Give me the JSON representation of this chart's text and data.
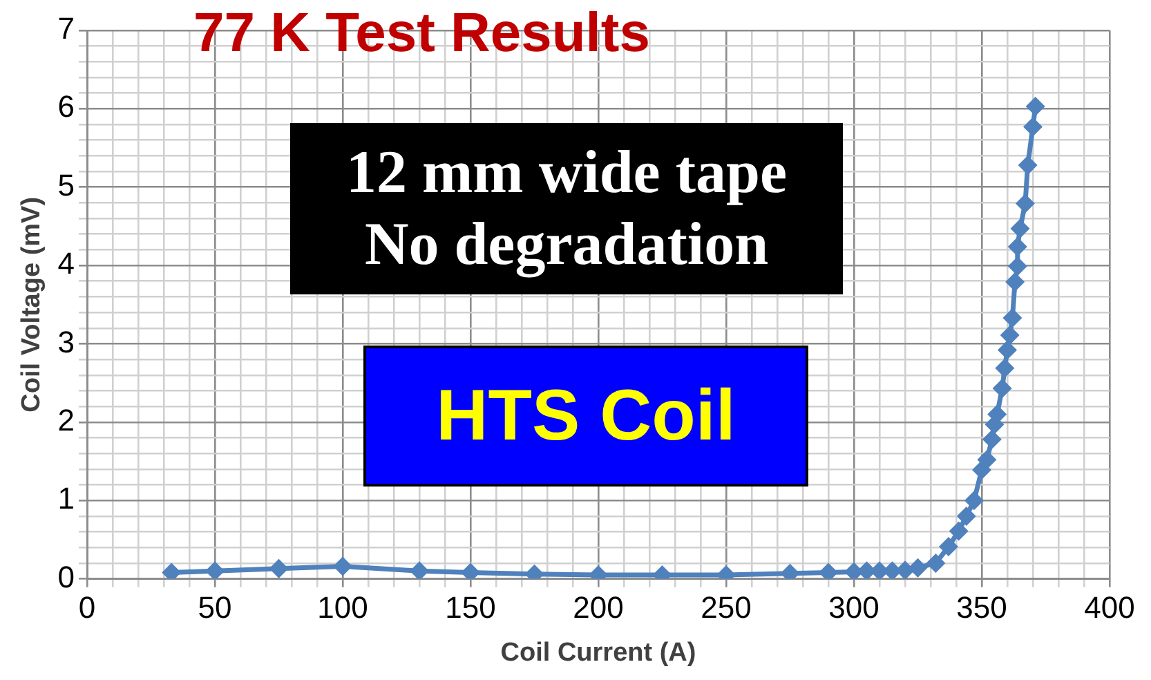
{
  "chart_data": {
    "type": "line",
    "title": "77 K Test Results",
    "xlabel": "Coil Current (A)",
    "ylabel": "Coil Voltage (mV)",
    "annotations": [
      "12 mm wide tape\nNo degradation",
      "HTS Coil"
    ],
    "series": [
      {
        "color": "#4f81bd",
        "x": [
          33,
          50,
          75,
          100,
          130,
          150,
          175,
          200,
          225,
          250,
          275,
          290,
          300,
          305,
          310,
          315,
          320,
          325,
          332,
          337,
          341,
          344,
          347,
          350,
          352,
          354,
          355,
          356,
          358,
          359,
          360,
          361,
          362,
          363,
          364,
          364,
          365,
          367,
          368,
          370,
          371
        ],
        "values": [
          0.08,
          0.1,
          0.13,
          0.16,
          0.1,
          0.08,
          0.06,
          0.05,
          0.05,
          0.05,
          0.07,
          0.08,
          0.09,
          0.1,
          0.1,
          0.1,
          0.11,
          0.14,
          0.2,
          0.41,
          0.61,
          0.8,
          1.0,
          1.39,
          1.52,
          1.78,
          1.97,
          2.1,
          2.43,
          2.69,
          2.92,
          3.11,
          3.33,
          3.79,
          3.99,
          4.24,
          4.47,
          4.79,
          5.28,
          5.77,
          6.03
        ]
      }
    ],
    "xlim": [
      0,
      400
    ],
    "xticks": [
      0,
      {
        "value": 10,
        "label": null
      },
      {
        "value": 20,
        "label": null
      },
      {
        "value": 30,
        "label": null
      },
      {
        "value": 40,
        "label": null
      },
      50,
      {
        "value": 60,
        "label": null
      },
      {
        "value": 70,
        "label": null
      },
      {
        "value": 80,
        "label": null
      },
      {
        "value": 90,
        "label": null
      },
      100,
      {
        "value": 110,
        "label": null
      },
      {
        "value": 120,
        "label": null
      },
      {
        "value": 130,
        "label": null
      },
      {
        "value": 140,
        "label": null
      },
      150,
      {
        "value": 160,
        "label": null
      },
      {
        "value": 170,
        "label": null
      },
      {
        "value": 180,
        "label": null
      },
      {
        "value": 190,
        "label": null
      },
      200,
      {
        "value": 210,
        "label": null
      },
      {
        "value": 220,
        "label": null
      },
      {
        "value": 230,
        "label": null
      },
      {
        "value": 240,
        "label": null
      },
      250,
      {
        "value": 260,
        "label": null
      },
      {
        "value": 270,
        "label": null
      },
      {
        "value": 280,
        "label": null
      },
      {
        "value": 290,
        "label": null
      },
      300,
      {
        "value": 310,
        "label": null
      },
      {
        "value": 320,
        "label": null
      },
      {
        "value": 330,
        "label": null
      },
      {
        "value": 340,
        "label": null
      },
      350,
      {
        "value": 360,
        "label": null
      },
      {
        "value": 370,
        "label": null
      },
      {
        "value": 380,
        "label": null
      },
      {
        "value": 390,
        "label": null
      },
      400
    ],
    "ylim": [
      0,
      7
    ],
    "yticks": [
      0,
      {
        "value": 0.2,
        "label": null
      },
      {
        "value": 0.4,
        "label": null
      },
      {
        "value": 0.6,
        "label": null
      },
      {
        "value": 0.8,
        "label": null
      },
      1,
      {
        "value": 1.2,
        "label": null
      },
      {
        "value": 1.4,
        "label": null
      },
      {
        "value": 1.6,
        "label": null
      },
      {
        "value": 1.8,
        "label": null
      },
      2,
      {
        "value": 2.2,
        "label": null
      },
      {
        "value": 2.4,
        "label": null
      },
      {
        "value": 2.6,
        "label": null
      },
      {
        "value": 2.8,
        "label": null
      },
      3,
      {
        "value": 3.2,
        "label": null
      },
      {
        "value": 3.4,
        "label": null
      },
      {
        "value": 3.6,
        "label": null
      },
      {
        "value": 3.8,
        "label": null
      },
      4,
      {
        "value": 4.2,
        "label": null
      },
      {
        "value": 4.4,
        "label": null
      },
      {
        "value": 4.6,
        "label": null
      },
      {
        "value": 4.8,
        "label": null
      },
      5,
      {
        "value": 5.2,
        "label": null
      },
      {
        "value": 5.4,
        "label": null
      },
      {
        "value": 5.6,
        "label": null
      },
      {
        "value": 5.8,
        "label": null
      },
      6,
      {
        "value": 6.2,
        "label": null
      },
      {
        "value": 6.4,
        "label": null
      },
      {
        "value": 6.6,
        "label": null
      },
      {
        "value": 6.8,
        "label": null
      },
      7
    ],
    "grid": true,
    "marker": "diamond",
    "line_style": "solid"
  }
}
